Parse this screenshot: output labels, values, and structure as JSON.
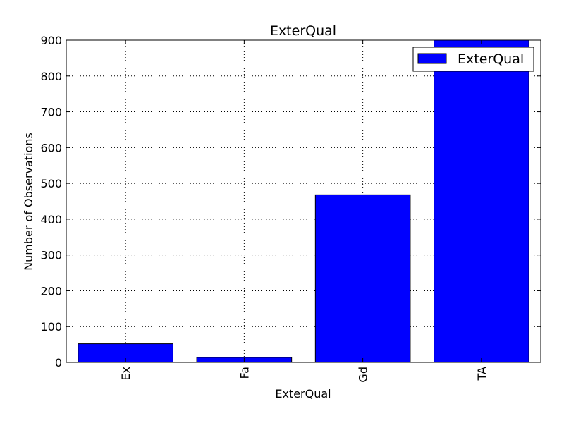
{
  "chart_data": {
    "type": "bar",
    "title": "ExterQual",
    "xlabel": "ExterQual",
    "ylabel": "Number of Observations",
    "categories": [
      "Ex",
      "Fa",
      "Gd",
      "TA"
    ],
    "series": [
      {
        "name": "ExterQual",
        "values": [
          52,
          14,
          468,
          906
        ]
      }
    ],
    "ylim": [
      0,
      900
    ],
    "yticks": [
      0,
      100,
      200,
      300,
      400,
      500,
      600,
      700,
      800,
      900
    ],
    "grid": true,
    "legend_position": "top-right",
    "colors": {
      "bar": "#0000ff",
      "edge": "#000000"
    }
  }
}
